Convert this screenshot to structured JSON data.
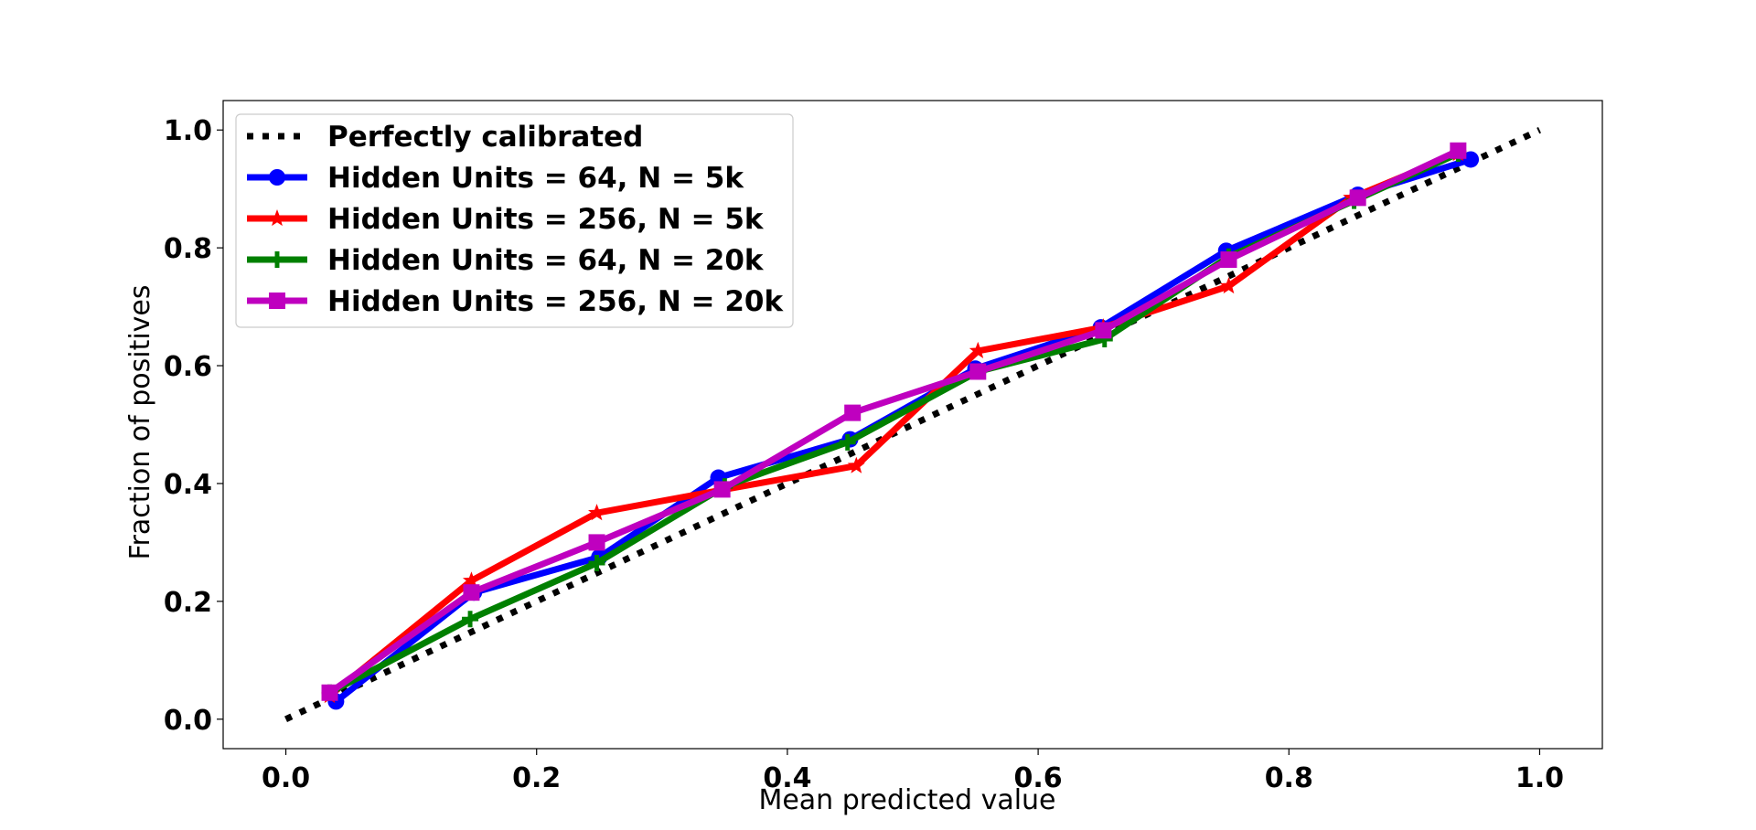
{
  "chart_data": {
    "type": "line",
    "title": "",
    "xlabel": "Mean predicted value",
    "ylabel": "Fraction of positives",
    "xlim": [
      -0.05,
      1.05
    ],
    "ylim": [
      -0.05,
      1.05
    ],
    "xticks": [
      0.0,
      0.2,
      0.4,
      0.6,
      0.8,
      1.0
    ],
    "xtick_labels": [
      "0.0",
      "0.2",
      "0.4",
      "0.6",
      "0.8",
      "1.0"
    ],
    "yticks": [
      0.0,
      0.2,
      0.4,
      0.6,
      0.8,
      1.0
    ],
    "ytick_labels": [
      "0.0",
      "0.2",
      "0.4",
      "0.6",
      "0.8",
      "1.0"
    ],
    "grid": false,
    "legend_position": "top-left",
    "series": [
      {
        "name": "Perfectly calibrated",
        "color": "#000000",
        "marker": "none",
        "style": "dotted",
        "x": [
          0.0,
          1.0
        ],
        "y": [
          0.0,
          1.0
        ]
      },
      {
        "name": "Hidden Units = 64, N = 5k",
        "color": "#0000ff",
        "marker": "circle",
        "style": "solid",
        "x": [
          0.04,
          0.15,
          0.25,
          0.345,
          0.45,
          0.55,
          0.65,
          0.75,
          0.855,
          0.945
        ],
        "y": [
          0.03,
          0.215,
          0.275,
          0.41,
          0.475,
          0.595,
          0.665,
          0.795,
          0.89,
          0.95
        ]
      },
      {
        "name": "Hidden Units = 256, N = 5k",
        "color": "#ff0000",
        "marker": "star",
        "style": "solid",
        "x": [
          0.035,
          0.148,
          0.248,
          0.35,
          0.455,
          0.552,
          0.652,
          0.752,
          0.85,
          0.935
        ],
        "y": [
          0.04,
          0.235,
          0.35,
          0.39,
          0.43,
          0.625,
          0.665,
          0.735,
          0.885,
          0.96
        ]
      },
      {
        "name": "Hidden Units = 64, N = 20k",
        "color": "#008000",
        "marker": "plus",
        "style": "solid",
        "x": [
          0.035,
          0.147,
          0.248,
          0.35,
          0.448,
          0.552,
          0.653,
          0.752,
          0.852,
          0.935
        ],
        "y": [
          0.045,
          0.17,
          0.265,
          0.395,
          0.47,
          0.59,
          0.645,
          0.785,
          0.88,
          0.96
        ]
      },
      {
        "name": "Hidden Units = 256, N = 20k",
        "color": "#bf00bf",
        "marker": "square",
        "style": "solid",
        "x": [
          0.035,
          0.148,
          0.248,
          0.348,
          0.452,
          0.552,
          0.652,
          0.752,
          0.855,
          0.935
        ],
        "y": [
          0.045,
          0.215,
          0.3,
          0.39,
          0.52,
          0.59,
          0.66,
          0.78,
          0.885,
          0.965
        ]
      }
    ]
  }
}
